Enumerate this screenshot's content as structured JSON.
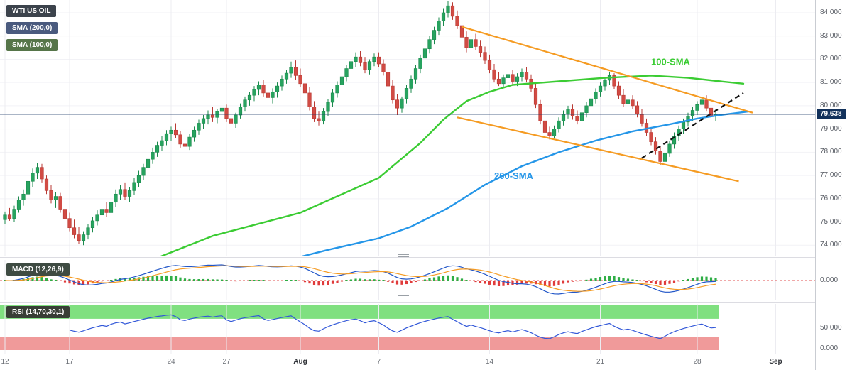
{
  "legend": {
    "symbol": "WTI US OIL",
    "sma200": "SMA (200,0)",
    "sma100": "SMA (100,0)",
    "macd": "MACD (12,26,9)",
    "rsi": "RSI (14,70,30,1)"
  },
  "palette": {
    "up": "#27a35f",
    "up_border": "#1b8a4d",
    "down": "#d14b44",
    "down_border": "#b93a34",
    "sma100": "#3bcc33",
    "sma200": "#2596e8",
    "channel": "#f59b22",
    "support_dash": "#111111",
    "price_line": "#1b3a67",
    "price_badge_bg": "#12315b",
    "macd_line": "#2156c8",
    "signal_line": "#f59b22",
    "hist_up": "#2fae46",
    "hist_down": "#e03b3b",
    "zero_line": "#e05252",
    "rsi_line": "#3157d8",
    "band_green": "#80e080",
    "band_red": "#f09a9a",
    "grid_v": "#ececf1",
    "grid_h": "#f2f2f6"
  },
  "price_axis": {
    "ticks": [
      "84.000",
      "83.000",
      "82.000",
      "81.000",
      "80.000",
      "79.000",
      "78.000",
      "77.000",
      "76.000",
      "75.000",
      "74.000"
    ],
    "current": "79.638"
  },
  "indicator_axis": {
    "macd_zero": "0.000",
    "rsi_mid": "50.000",
    "rsi_min": "0.000"
  },
  "time_axis": {
    "ticks": [
      {
        "label": "12",
        "bar": 0
      },
      {
        "label": "17",
        "bar": 14
      },
      {
        "label": "24",
        "bar": 36
      },
      {
        "label": "27",
        "bar": 48
      },
      {
        "label": "Aug",
        "bar": 64,
        "bold": true
      },
      {
        "label": "7",
        "bar": 81
      },
      {
        "label": "14",
        "bar": 105
      },
      {
        "label": "21",
        "bar": 129
      },
      {
        "label": "28",
        "bar": 150
      },
      {
        "label": "Sep",
        "bar": 167,
        "bold": true
      }
    ]
  },
  "chart_data": {
    "type": "candlestick",
    "title": "WTI US OIL",
    "panes": [
      "price with SMA(100), SMA(200)",
      "MACD (12,26,9)",
      "RSI (14,70,30,1)"
    ],
    "price_range": [
      73.55,
      84.55
    ],
    "current_price": 79.638,
    "candles": [
      [
        75.1,
        75.45,
        74.9,
        75.3
      ],
      [
        75.3,
        75.6,
        75.05,
        75.15
      ],
      [
        75.15,
        75.7,
        75.0,
        75.55
      ],
      [
        75.55,
        76.1,
        75.4,
        75.95
      ],
      [
        75.95,
        76.4,
        75.7,
        76.2
      ],
      [
        76.2,
        76.9,
        76.05,
        76.75
      ],
      [
        76.75,
        77.3,
        76.5,
        77.1
      ],
      [
        77.1,
        77.55,
        76.85,
        77.35
      ],
      [
        77.35,
        77.5,
        76.7,
        76.85
      ],
      [
        76.85,
        77.0,
        76.2,
        76.35
      ],
      [
        76.35,
        76.6,
        75.8,
        75.95
      ],
      [
        75.95,
        76.3,
        75.6,
        76.1
      ],
      [
        76.1,
        76.25,
        75.4,
        75.55
      ],
      [
        75.55,
        75.8,
        75.0,
        75.15
      ],
      [
        75.15,
        75.4,
        74.6,
        74.75
      ],
      [
        74.75,
        75.1,
        74.3,
        74.45
      ],
      [
        74.45,
        74.8,
        74.05,
        74.2
      ],
      [
        74.2,
        74.6,
        74.0,
        74.45
      ],
      [
        74.45,
        74.9,
        74.25,
        74.75
      ],
      [
        74.75,
        75.2,
        74.55,
        75.05
      ],
      [
        75.05,
        75.5,
        74.85,
        75.3
      ],
      [
        75.3,
        75.7,
        75.1,
        75.55
      ],
      [
        75.55,
        75.85,
        75.2,
        75.4
      ],
      [
        75.4,
        76.0,
        75.25,
        75.85
      ],
      [
        75.85,
        76.4,
        75.65,
        76.2
      ],
      [
        76.2,
        76.6,
        75.95,
        76.4
      ],
      [
        76.4,
        76.7,
        75.95,
        76.1
      ],
      [
        76.1,
        76.5,
        75.85,
        76.35
      ],
      [
        76.35,
        76.9,
        76.15,
        76.7
      ],
      [
        76.7,
        77.2,
        76.5,
        77.0
      ],
      [
        77.0,
        77.5,
        76.8,
        77.35
      ],
      [
        77.35,
        77.9,
        77.15,
        77.7
      ],
      [
        77.7,
        78.2,
        77.5,
        78.0
      ],
      [
        78.0,
        78.45,
        77.8,
        78.3
      ],
      [
        78.3,
        78.7,
        78.05,
        78.5
      ],
      [
        78.5,
        78.95,
        78.3,
        78.8
      ],
      [
        78.8,
        79.1,
        78.5,
        78.95
      ],
      [
        78.95,
        79.25,
        78.6,
        78.75
      ],
      [
        78.75,
        78.9,
        78.2,
        78.35
      ],
      [
        78.35,
        78.6,
        78.0,
        78.25
      ],
      [
        78.25,
        78.8,
        78.1,
        78.65
      ],
      [
        78.65,
        79.1,
        78.45,
        78.95
      ],
      [
        78.95,
        79.4,
        78.75,
        79.25
      ],
      [
        79.25,
        79.6,
        79.0,
        79.45
      ],
      [
        79.45,
        79.8,
        79.2,
        79.6
      ],
      [
        79.6,
        79.95,
        79.3,
        79.5
      ],
      [
        79.5,
        79.85,
        79.25,
        79.75
      ],
      [
        79.75,
        80.1,
        79.5,
        79.9
      ],
      [
        79.9,
        80.05,
        79.3,
        79.45
      ],
      [
        79.45,
        79.8,
        79.1,
        79.25
      ],
      [
        79.25,
        79.7,
        79.05,
        79.6
      ],
      [
        79.6,
        80.1,
        79.45,
        79.95
      ],
      [
        79.95,
        80.4,
        79.75,
        80.25
      ],
      [
        80.25,
        80.6,
        80.0,
        80.45
      ],
      [
        80.45,
        80.85,
        80.2,
        80.7
      ],
      [
        80.7,
        81.05,
        80.45,
        80.9
      ],
      [
        80.9,
        81.1,
        80.4,
        80.55
      ],
      [
        80.55,
        80.9,
        80.2,
        80.35
      ],
      [
        80.35,
        80.75,
        80.1,
        80.6
      ],
      [
        80.6,
        81.0,
        80.35,
        80.85
      ],
      [
        80.85,
        81.3,
        80.65,
        81.15
      ],
      [
        81.15,
        81.55,
        80.95,
        81.4
      ],
      [
        81.4,
        81.9,
        81.2,
        81.65
      ],
      [
        81.65,
        81.95,
        81.1,
        81.3
      ],
      [
        81.3,
        81.6,
        80.8,
        80.95
      ],
      [
        80.95,
        81.2,
        80.4,
        80.55
      ],
      [
        80.55,
        80.8,
        79.8,
        79.95
      ],
      [
        79.95,
        80.2,
        79.3,
        79.45
      ],
      [
        79.45,
        79.75,
        79.15,
        79.35
      ],
      [
        79.35,
        79.9,
        79.2,
        79.75
      ],
      [
        79.75,
        80.3,
        79.55,
        80.15
      ],
      [
        80.15,
        80.7,
        79.95,
        80.55
      ],
      [
        80.55,
        81.05,
        80.35,
        80.9
      ],
      [
        80.9,
        81.4,
        80.7,
        81.25
      ],
      [
        81.25,
        81.75,
        81.05,
        81.6
      ],
      [
        81.6,
        82.05,
        81.4,
        81.9
      ],
      [
        81.9,
        82.3,
        81.65,
        82.1
      ],
      [
        82.1,
        82.35,
        81.7,
        81.85
      ],
      [
        81.85,
        82.1,
        81.4,
        81.55
      ],
      [
        81.55,
        82.0,
        81.35,
        81.9
      ],
      [
        81.9,
        82.25,
        81.7,
        82.1
      ],
      [
        82.1,
        82.3,
        81.65,
        81.8
      ],
      [
        81.8,
        82.0,
        81.3,
        81.45
      ],
      [
        81.45,
        81.7,
        80.7,
        80.85
      ],
      [
        80.85,
        81.1,
        80.1,
        80.25
      ],
      [
        80.25,
        80.5,
        79.6,
        79.9
      ],
      [
        79.9,
        80.4,
        79.7,
        80.3
      ],
      [
        80.3,
        80.9,
        80.1,
        80.75
      ],
      [
        80.75,
        81.3,
        80.55,
        81.15
      ],
      [
        81.15,
        81.75,
        80.95,
        81.6
      ],
      [
        81.6,
        82.2,
        81.4,
        82.05
      ],
      [
        82.05,
        82.6,
        81.85,
        82.45
      ],
      [
        82.45,
        83.0,
        82.25,
        82.85
      ],
      [
        82.85,
        83.4,
        82.65,
        83.25
      ],
      [
        83.25,
        83.8,
        83.05,
        83.65
      ],
      [
        83.65,
        84.2,
        83.45,
        84.0
      ],
      [
        84.0,
        84.5,
        83.8,
        84.3
      ],
      [
        84.3,
        84.45,
        83.7,
        83.85
      ],
      [
        83.85,
        84.1,
        83.3,
        83.45
      ],
      [
        83.45,
        83.7,
        82.8,
        82.95
      ],
      [
        82.95,
        83.2,
        82.3,
        82.5
      ],
      [
        82.5,
        83.0,
        82.3,
        82.85
      ],
      [
        82.85,
        83.1,
        82.4,
        82.55
      ],
      [
        82.55,
        82.8,
        82.1,
        82.3
      ],
      [
        82.3,
        82.55,
        81.8,
        81.95
      ],
      [
        81.95,
        82.2,
        81.4,
        81.55
      ],
      [
        81.55,
        81.8,
        81.0,
        81.15
      ],
      [
        81.15,
        81.45,
        80.85,
        80.95
      ],
      [
        80.95,
        81.35,
        80.75,
        81.2
      ],
      [
        81.2,
        81.5,
        80.95,
        81.35
      ],
      [
        81.35,
        81.55,
        80.9,
        81.05
      ],
      [
        81.05,
        81.4,
        80.85,
        81.25
      ],
      [
        81.25,
        81.6,
        81.05,
        81.45
      ],
      [
        81.45,
        81.65,
        81.0,
        81.15
      ],
      [
        81.15,
        81.35,
        80.6,
        80.75
      ],
      [
        80.75,
        80.95,
        79.9,
        80.05
      ],
      [
        80.05,
        80.25,
        79.2,
        79.35
      ],
      [
        79.35,
        79.55,
        78.7,
        78.85
      ],
      [
        78.85,
        79.1,
        78.55,
        78.7
      ],
      [
        78.7,
        79.15,
        78.6,
        79.0
      ],
      [
        79.0,
        79.5,
        78.85,
        79.35
      ],
      [
        79.35,
        79.8,
        79.15,
        79.65
      ],
      [
        79.65,
        80.0,
        79.45,
        79.85
      ],
      [
        79.85,
        80.05,
        79.4,
        79.55
      ],
      [
        79.55,
        79.8,
        79.2,
        79.35
      ],
      [
        79.35,
        79.85,
        79.25,
        79.7
      ],
      [
        79.7,
        80.15,
        79.5,
        80.0
      ],
      [
        80.0,
        80.45,
        79.8,
        80.3
      ],
      [
        80.3,
        80.75,
        80.1,
        80.6
      ],
      [
        80.6,
        81.0,
        80.4,
        80.85
      ],
      [
        80.85,
        81.25,
        80.65,
        81.1
      ],
      [
        81.1,
        81.45,
        80.9,
        81.3
      ],
      [
        81.3,
        81.4,
        80.7,
        80.85
      ],
      [
        80.85,
        81.05,
        80.3,
        80.45
      ],
      [
        80.45,
        80.7,
        79.95,
        80.1
      ],
      [
        80.1,
        80.4,
        79.8,
        80.25
      ],
      [
        80.25,
        80.45,
        79.85,
        80.0
      ],
      [
        80.0,
        80.2,
        79.5,
        79.65
      ],
      [
        79.65,
        79.85,
        79.1,
        79.25
      ],
      [
        79.25,
        79.45,
        78.7,
        78.85
      ],
      [
        78.85,
        79.05,
        78.3,
        78.45
      ],
      [
        78.45,
        78.65,
        77.9,
        78.05
      ],
      [
        78.05,
        78.25,
        77.45,
        77.6
      ],
      [
        77.6,
        78.1,
        77.4,
        77.95
      ],
      [
        77.95,
        78.5,
        77.8,
        78.35
      ],
      [
        78.35,
        78.85,
        78.15,
        78.7
      ],
      [
        78.7,
        79.15,
        78.5,
        79.0
      ],
      [
        79.0,
        79.45,
        78.8,
        79.3
      ],
      [
        79.3,
        79.7,
        79.1,
        79.55
      ],
      [
        79.55,
        79.95,
        79.35,
        79.8
      ],
      [
        79.8,
        80.2,
        79.6,
        80.05
      ],
      [
        80.05,
        80.4,
        79.85,
        80.25
      ],
      [
        80.25,
        80.45,
        79.75,
        79.9
      ],
      [
        79.9,
        80.1,
        79.4,
        79.55
      ],
      [
        79.55,
        79.85,
        79.35,
        79.64
      ]
    ],
    "sma100_points": [
      [
        31,
        73.3
      ],
      [
        45,
        74.4
      ],
      [
        64,
        75.4
      ],
      [
        81,
        76.9
      ],
      [
        90,
        78.4
      ],
      [
        95,
        79.4
      ],
      [
        100,
        80.2
      ],
      [
        105,
        80.6
      ],
      [
        110,
        80.9
      ],
      [
        120,
        81.05
      ],
      [
        130,
        81.2
      ],
      [
        140,
        81.3
      ],
      [
        148,
        81.2
      ],
      [
        155,
        81.05
      ],
      [
        160,
        80.95
      ]
    ],
    "sma200_points": [
      [
        58,
        73.2
      ],
      [
        70,
        73.8
      ],
      [
        81,
        74.3
      ],
      [
        88,
        74.8
      ],
      [
        96,
        75.6
      ],
      [
        104,
        76.6
      ],
      [
        112,
        77.4
      ],
      [
        120,
        78.0
      ],
      [
        128,
        78.5
      ],
      [
        136,
        78.9
      ],
      [
        144,
        79.2
      ],
      [
        150,
        79.45
      ],
      [
        155,
        79.6
      ],
      [
        161,
        79.75
      ]
    ],
    "trendlines": [
      {
        "name": "upper-channel",
        "colorKey": "channel",
        "dash": false,
        "from": [
          99,
          83.4
        ],
        "to": [
          162,
          79.7
        ]
      },
      {
        "name": "lower-channel",
        "colorKey": "channel",
        "dash": false,
        "from": [
          98,
          79.5
        ],
        "to": [
          159,
          76.75
        ]
      },
      {
        "name": "ascending-support",
        "colorKey": "support_dash",
        "dash": true,
        "from": [
          138,
          77.75
        ],
        "to": [
          160,
          80.55
        ]
      }
    ],
    "annotations": [
      {
        "text": "100-SMA",
        "bar": 140,
        "price": 81.75,
        "colorKey": "sma100"
      },
      {
        "text": "200-SMA",
        "bar": 106,
        "price": 76.85,
        "colorKey": "sma200"
      }
    ],
    "macd": {
      "params": [
        12,
        26,
        9
      ]
    },
    "rsi": {
      "params": [
        14,
        70,
        30,
        1
      ],
      "overbought_band": [
        70,
        100
      ],
      "oversold_band": [
        0,
        30
      ]
    }
  }
}
